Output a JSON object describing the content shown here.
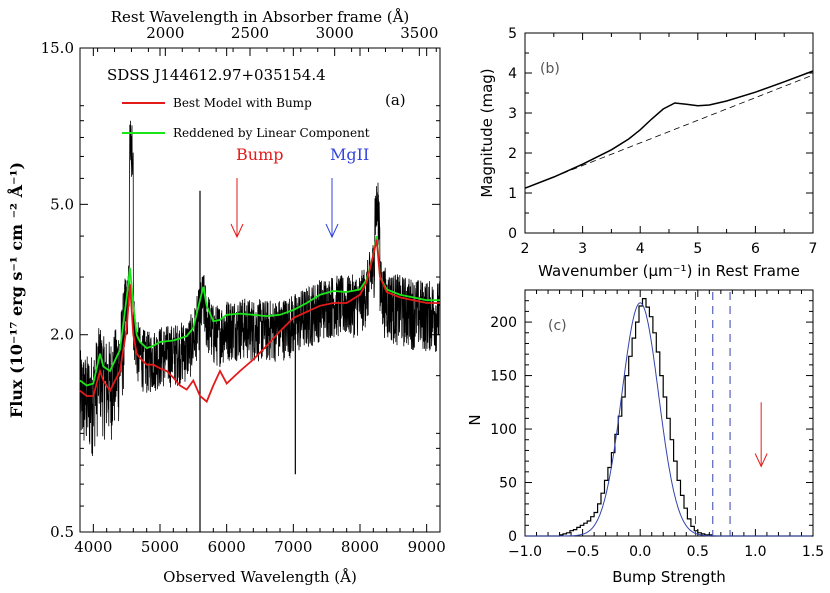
{
  "chart_data": [
    {
      "id": "a",
      "type": "line",
      "panel_label": "(a)",
      "title": "SDSS J144612.97+035154.4",
      "top_axis_label": "Rest Wavelength in Absorber frame (Å)",
      "xlabel": "Observed Wavelength (Å)",
      "ylabel": "Flux (10⁻¹⁷ erg s⁻¹ cm ⁻² Å⁻¹)",
      "y_scale": "log",
      "xlim": [
        3800,
        9200
      ],
      "ylim": [
        0.5,
        15.0
      ],
      "x_ticks": [
        "4000",
        "5000",
        "6000",
        "7000",
        "8000",
        "9000"
      ],
      "y_ticks": [
        "0.5",
        "2.0",
        "5.0",
        "15.0"
      ],
      "top_ticks": [
        "2000",
        "2500",
        "3000",
        "3500"
      ],
      "legend": [
        {
          "label": "Best Model with Bump",
          "color": "#e41a1a"
        },
        {
          "label": "Reddened by Linear Component",
          "color": "#19e619"
        }
      ],
      "annotations": [
        {
          "text": "Bump",
          "color": "#e41a1a",
          "x": 5600
        },
        {
          "text": "MgII",
          "color": "#3344dd",
          "x": 7050
        }
      ],
      "series": [
        {
          "name": "Best Model with Bump",
          "color": "#e41a1a",
          "x": [
            3800,
            3900,
            4000,
            4100,
            4150,
            4250,
            4400,
            4500,
            4550,
            4600,
            4650,
            4700,
            4800,
            4900,
            5000,
            5100,
            5200,
            5300,
            5400,
            5500,
            5600,
            5700,
            5800,
            5900,
            6000,
            6200,
            6400,
            6600,
            6800,
            7000,
            7200,
            7400,
            7600,
            7800,
            8000,
            8100,
            8200,
            8250,
            8300,
            8400,
            8600,
            8800,
            9000,
            9200
          ],
          "y": [
            1.35,
            1.3,
            1.3,
            1.55,
            1.45,
            1.35,
            1.55,
            2.1,
            2.85,
            2.0,
            1.75,
            1.7,
            1.62,
            1.62,
            1.58,
            1.55,
            1.48,
            1.4,
            1.36,
            1.45,
            1.3,
            1.25,
            1.4,
            1.55,
            1.42,
            1.55,
            1.68,
            1.85,
            2.05,
            2.25,
            2.35,
            2.45,
            2.5,
            2.5,
            2.65,
            2.9,
            3.5,
            3.9,
            3.0,
            2.7,
            2.6,
            2.55,
            2.5,
            2.5
          ]
        },
        {
          "name": "Reddened by Linear Component",
          "color": "#19e619",
          "x": [
            3800,
            3900,
            4000,
            4100,
            4150,
            4250,
            4400,
            4500,
            4550,
            4600,
            4650,
            4700,
            4800,
            4900,
            5000,
            5200,
            5400,
            5500,
            5600,
            5650,
            5700,
            5800,
            5900,
            6000,
            6200,
            6400,
            6600,
            6800,
            7000,
            7200,
            7400,
            7600,
            7800,
            8000,
            8100,
            8200,
            8250,
            8300,
            8400,
            8600,
            8800,
            9000,
            9200
          ],
          "y": [
            1.45,
            1.4,
            1.42,
            1.75,
            1.6,
            1.55,
            1.8,
            2.6,
            3.2,
            2.45,
            2.0,
            1.9,
            1.82,
            1.85,
            1.9,
            1.92,
            1.98,
            2.1,
            2.55,
            2.8,
            2.45,
            2.2,
            2.22,
            2.3,
            2.32,
            2.3,
            2.28,
            2.3,
            2.38,
            2.5,
            2.65,
            2.72,
            2.7,
            2.75,
            2.95,
            3.5,
            4.0,
            3.0,
            2.75,
            2.65,
            2.6,
            2.55,
            2.55
          ]
        }
      ]
    },
    {
      "id": "b",
      "type": "line",
      "panel_label": "(b)",
      "xlabel": "Wavenumber (μm⁻¹) in Rest Frame",
      "ylabel": "Magnitude (mag)",
      "xlim": [
        2,
        7
      ],
      "ylim": [
        0,
        5
      ],
      "x_ticks": [
        2,
        3,
        4,
        5,
        6,
        7
      ],
      "y_ticks": [
        0,
        1,
        2,
        3,
        4,
        5
      ],
      "series": [
        {
          "style": "solid",
          "x": [
            2.0,
            2.5,
            3.0,
            3.5,
            3.8,
            4.0,
            4.2,
            4.4,
            4.6,
            4.8,
            5.0,
            5.2,
            5.5,
            6.0,
            6.5,
            7.0
          ],
          "y": [
            1.12,
            1.4,
            1.72,
            2.08,
            2.35,
            2.58,
            2.85,
            3.1,
            3.25,
            3.22,
            3.18,
            3.2,
            3.3,
            3.52,
            3.78,
            4.05
          ]
        },
        {
          "style": "dashed",
          "x": [
            2.0,
            7.0
          ],
          "y": [
            1.12,
            3.95
          ]
        }
      ]
    },
    {
      "id": "c",
      "type": "histogram",
      "panel_label": "(c)",
      "xlabel": "Bump Strength",
      "ylabel": "N",
      "xlim": [
        -1.0,
        1.5
      ],
      "ylim": [
        0,
        230
      ],
      "x_ticks": [
        "−1.0",
        "−0.5",
        "0.0",
        "0.5",
        "1.0",
        "1.5"
      ],
      "y_ticks": [
        0,
        50,
        100,
        150,
        200
      ],
      "bin_width": 0.03,
      "bin_start": -0.7,
      "counts": [
        1,
        2,
        3,
        5,
        6,
        8,
        10,
        12,
        14,
        18,
        22,
        30,
        40,
        52,
        64,
        78,
        95,
        112,
        130,
        150,
        168,
        185,
        200,
        215,
        222,
        214,
        205,
        190,
        172,
        150,
        130,
        110,
        90,
        70,
        52,
        38,
        26,
        16,
        9,
        5,
        3,
        2,
        1,
        1
      ],
      "gaussian_fit": {
        "mean": 0.0,
        "sigma": 0.16,
        "peak": 218,
        "color": "#3344aa"
      },
      "vlines": [
        0.48,
        0.63,
        0.78
      ],
      "vline_color": "#3344aa",
      "arrow": {
        "x": 1.05,
        "y_from": 125,
        "y_to": 65,
        "color": "#e41a1a"
      }
    }
  ]
}
